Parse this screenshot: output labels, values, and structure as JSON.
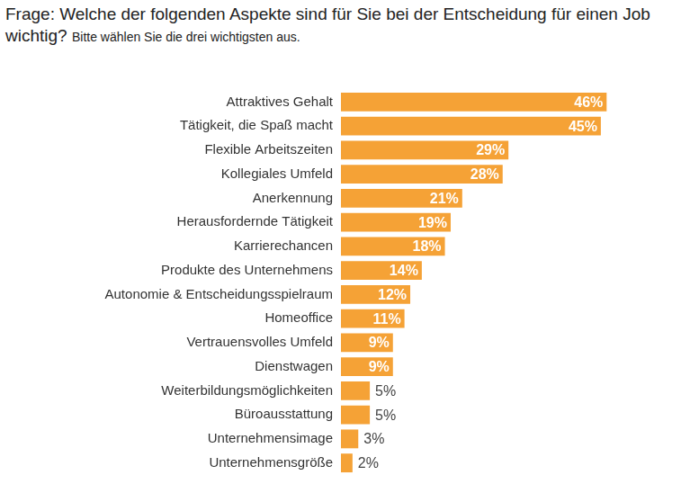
{
  "chart_data": {
    "type": "bar",
    "orientation": "horizontal",
    "title": "Frage: Welche der folgenden Aspekte sind für Sie bei der Entscheidung für einen Job wichtig?",
    "subtitle": "Bitte wählen Sie die drei wichtigsten aus.",
    "categories": [
      "Attraktives Gehalt",
      "Tätigkeit, die Spaß macht",
      "Flexible Arbeitszeiten",
      "Kollegiales Umfeld",
      "Anerkennung",
      "Herausfordernde Tätigkeit",
      "Karrierechancen",
      "Produkte des Unternehmens",
      "Autonomie & Entscheidungsspielraum",
      "Homeoffice",
      "Vertrauensvolles Umfeld",
      "Dienstwagen",
      "Weiterbildungsmöglichkeiten",
      "Büroausstattung",
      "Unternehmensimage",
      "Unternehmensgröße"
    ],
    "values": [
      46,
      45,
      29,
      28,
      21,
      19,
      18,
      14,
      12,
      11,
      9,
      9,
      5,
      5,
      3,
      2
    ],
    "value_labels": [
      "46%",
      "45%",
      "29%",
      "28%",
      "21%",
      "19%",
      "18%",
      "14%",
      "12%",
      "11%",
      "9%",
      "9%",
      "5%",
      "5%",
      "3%",
      "2%"
    ],
    "color": "#f5a236",
    "xlim": [
      0,
      50
    ],
    "grid": false,
    "data_labels": true,
    "tick_labels": "y"
  }
}
